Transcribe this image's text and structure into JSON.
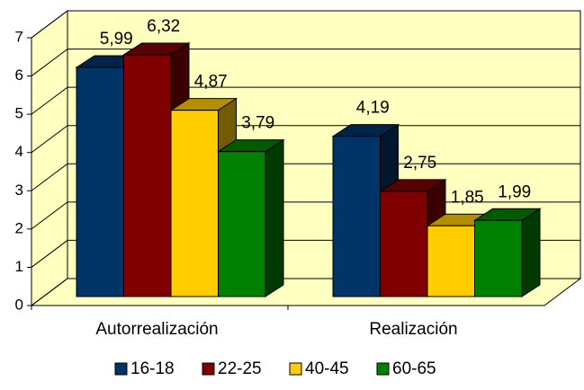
{
  "chart_data": {
    "type": "bar3d",
    "categories": [
      "Autorrealización",
      "Realización"
    ],
    "series": [
      {
        "name": "16-18",
        "color": "#003366",
        "values": [
          5.99,
          4.19
        ],
        "value_labels": [
          "5,99",
          "4,19"
        ]
      },
      {
        "name": "22-25",
        "color": "#800000",
        "values": [
          6.32,
          2.75
        ],
        "value_labels": [
          "6,32",
          "2,75"
        ]
      },
      {
        "name": "40-45",
        "color": "#ffcc00",
        "values": [
          4.87,
          1.85
        ],
        "value_labels": [
          "4,87",
          "1,85"
        ]
      },
      {
        "name": "60-65",
        "color": "#008000",
        "values": [
          3.79,
          1.99
        ],
        "value_labels": [
          "3,79",
          "1,99"
        ]
      }
    ],
    "ylim": [
      0,
      7
    ],
    "yticks": [
      0,
      1,
      2,
      3,
      4,
      5,
      6,
      7
    ],
    "grid": true,
    "legend": "bottom"
  }
}
